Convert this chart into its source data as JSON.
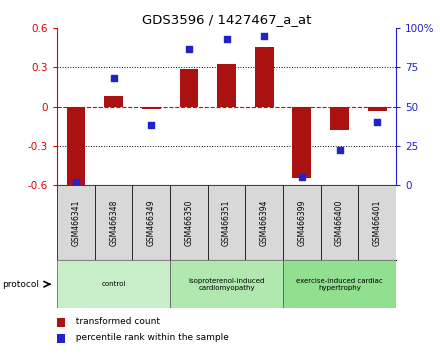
{
  "title": "GDS3596 / 1427467_a_at",
  "samples": [
    "GSM466341",
    "GSM466348",
    "GSM466349",
    "GSM466350",
    "GSM466351",
    "GSM466394",
    "GSM466399",
    "GSM466400",
    "GSM466401"
  ],
  "transformed_count": [
    -0.6,
    0.08,
    -0.02,
    0.29,
    0.33,
    0.46,
    -0.55,
    -0.18,
    -0.03
  ],
  "percentile_rank": [
    2,
    68,
    38,
    87,
    93,
    95,
    5,
    22,
    40
  ],
  "bar_color": "#AA1111",
  "dot_color": "#2222CC",
  "ylim_left": [
    -0.6,
    0.6
  ],
  "ylim_right": [
    0,
    100
  ],
  "yticks_left": [
    -0.6,
    -0.3,
    0.0,
    0.3,
    0.6
  ],
  "ytick_labels_left": [
    "-0.6",
    "-0.3",
    "0",
    "0.3",
    "0.6"
  ],
  "yticks_right": [
    0,
    25,
    50,
    75,
    100
  ],
  "ytick_labels_right": [
    "0",
    "25",
    "50",
    "75",
    "100%"
  ],
  "groups": [
    {
      "label": "control",
      "start": 0,
      "end": 3,
      "color": "#c8eec8"
    },
    {
      "label": "isoproterenol-induced\ncardiomyopathy",
      "start": 3,
      "end": 6,
      "color": "#b0e8b0"
    },
    {
      "label": "exercise-induced cardiac\nhypertrophy",
      "start": 6,
      "end": 9,
      "color": "#90e090"
    }
  ],
  "protocol_label": "protocol",
  "legend_bar_label": "transformed count",
  "legend_dot_label": "percentile rank within the sample",
  "zero_line_color": "#DD0000",
  "bg_color": "#ffffff",
  "plot_bg_color": "#ffffff",
  "bar_width": 0.5
}
